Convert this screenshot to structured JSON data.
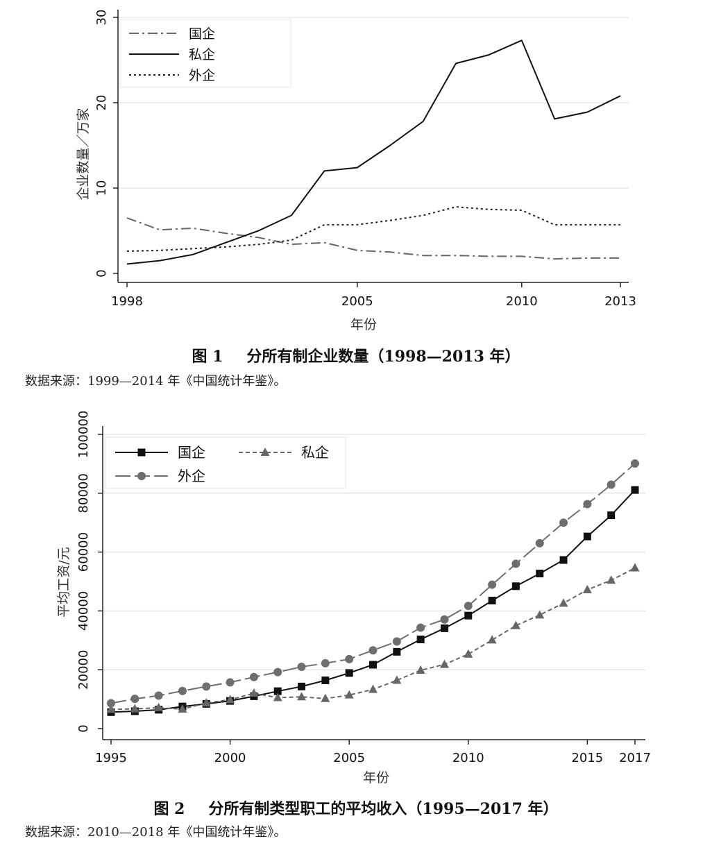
{
  "figures": [
    {
      "caption_label": "图 1",
      "caption_title": "分所有制企业数量（1998—2013 年）",
      "source": "数据来源：1999—2014 年《中国统计年鉴》。"
    },
    {
      "caption_label": "图 2",
      "caption_title": "分所有制类型职工的平均收入（1995—2017 年）",
      "source": "数据来源：2010—2018 年《中国统计年鉴》。"
    }
  ],
  "chart_data": [
    {
      "type": "line",
      "title": "",
      "xlabel": "年份",
      "ylabel": "企业数量／万家",
      "xlim": [
        1998,
        2013
      ],
      "ylim": [
        0,
        30
      ],
      "x_ticks": [
        1998,
        2005,
        2010,
        2013
      ],
      "y_ticks": [
        0,
        10,
        20,
        30
      ],
      "grid": true,
      "legend_position": "top-left",
      "x": [
        1998,
        1999,
        2000,
        2001,
        2002,
        2003,
        2004,
        2005,
        2006,
        2007,
        2008,
        2009,
        2010,
        2011,
        2012,
        2013
      ],
      "series": [
        {
          "name": "国企",
          "style": "dash-dot",
          "color": "#666666",
          "values": [
            6.5,
            5.1,
            5.3,
            4.7,
            4.2,
            3.4,
            3.6,
            2.7,
            2.5,
            2.1,
            2.1,
            2.0,
            2.0,
            1.7,
            1.8,
            1.8
          ]
        },
        {
          "name": "私企",
          "style": "solid",
          "color": "#111111",
          "values": [
            1.1,
            1.5,
            2.2,
            3.6,
            5.0,
            6.8,
            12.0,
            12.4,
            15.0,
            17.8,
            24.6,
            25.6,
            27.3,
            18.1,
            18.9,
            20.8
          ]
        },
        {
          "name": "外企",
          "style": "dotted",
          "color": "#222222",
          "values": [
            2.6,
            2.7,
            2.9,
            3.1,
            3.4,
            3.9,
            5.7,
            5.7,
            6.2,
            6.8,
            7.8,
            7.5,
            7.4,
            5.7,
            5.7,
            5.7
          ]
        }
      ]
    },
    {
      "type": "line",
      "title": "",
      "xlabel": "年份",
      "ylabel": "平均工资/元",
      "xlim": [
        1995,
        2017
      ],
      "ylim": [
        0,
        100000
      ],
      "x_ticks": [
        1995,
        2000,
        2005,
        2010,
        2015,
        2017
      ],
      "y_ticks": [
        0,
        20000,
        40000,
        60000,
        80000,
        100000
      ],
      "grid": true,
      "legend_position": "top-left",
      "x": [
        1995,
        1996,
        1997,
        1998,
        1999,
        2000,
        2001,
        2002,
        2003,
        2004,
        2005,
        2006,
        2007,
        2008,
        2009,
        2010,
        2011,
        2012,
        2013,
        2014,
        2015,
        2016,
        2017
      ],
      "series": [
        {
          "name": "国企",
          "style": "solid",
          "marker": "square",
          "color": "#111111",
          "values": [
            5600,
            5900,
            6400,
            7500,
            8400,
            9400,
            11000,
            12700,
            14300,
            16400,
            18900,
            21700,
            26100,
            30300,
            34100,
            38400,
            43500,
            48400,
            52700,
            57300,
            65300,
            72500,
            81100
          ]
        },
        {
          "name": "私企",
          "style": "dashed",
          "marker": "triangle",
          "color": "#666666",
          "values": [
            6500,
            6700,
            7100,
            6600,
            8700,
            9800,
            12000,
            10500,
            10800,
            10200,
            11400,
            13300,
            16400,
            19800,
            21800,
            25300,
            30100,
            35000,
            38600,
            42600,
            47200,
            50400,
            54600
          ]
        },
        {
          "name": "外企",
          "style": "long-dash",
          "marker": "circle",
          "color": "#6e6e6e",
          "values": [
            8600,
            10100,
            11200,
            12800,
            14300,
            15700,
            17500,
            19200,
            21000,
            22200,
            23600,
            26600,
            29600,
            34300,
            37100,
            41700,
            48900,
            56000,
            63000,
            70000,
            76300,
            82900,
            90100
          ]
        }
      ]
    }
  ]
}
